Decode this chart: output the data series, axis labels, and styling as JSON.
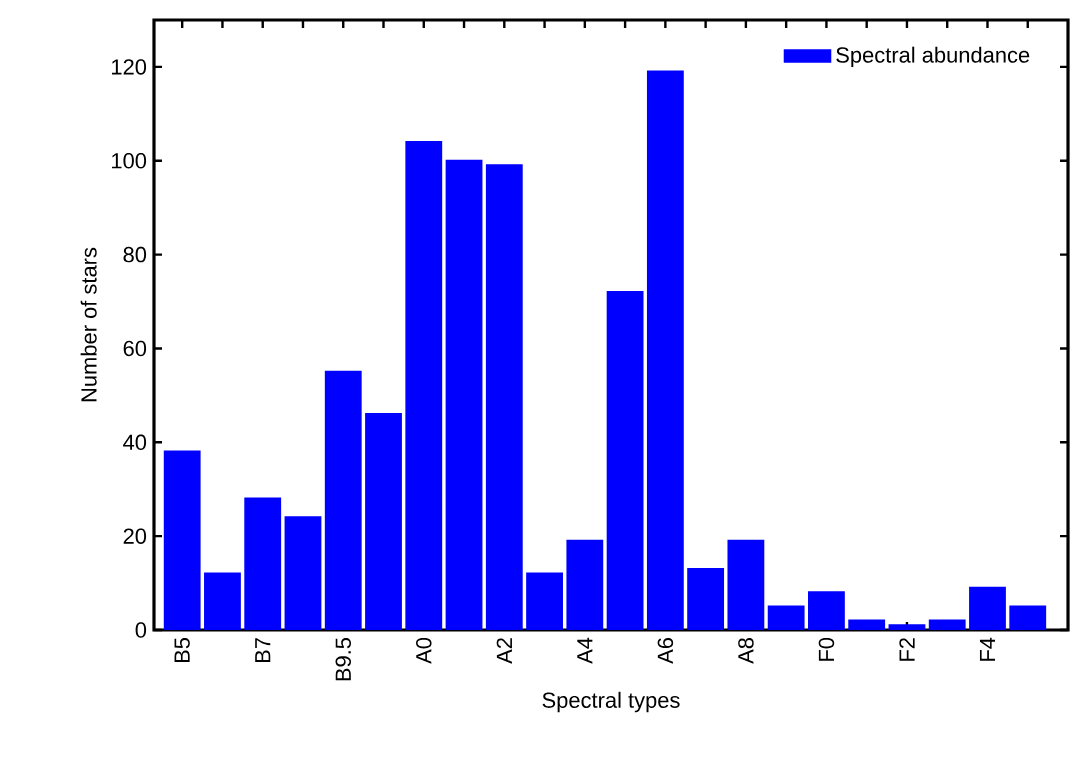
{
  "chart_data": {
    "type": "bar",
    "xlabel": "Spectral types",
    "ylabel": "Number of stars",
    "categories": [
      "B5",
      null,
      "B7",
      null,
      "B9.5",
      null,
      "A0",
      null,
      "A2",
      null,
      "A4",
      null,
      "A6",
      null,
      "A8",
      null,
      "F0",
      null,
      "F2",
      null,
      "F4",
      null
    ],
    "series": [
      {
        "name": "Spectral abundance",
        "color": "#0000ff",
        "values": [
          38,
          12,
          28,
          24,
          55,
          46,
          104,
          100,
          99,
          12,
          19,
          72,
          119,
          13,
          19,
          5,
          8,
          2,
          1,
          2,
          9,
          5
        ]
      }
    ],
    "ylim": [
      0,
      130
    ],
    "yticks": [
      0,
      20,
      40,
      60,
      80,
      100,
      120
    ],
    "legend": "top right"
  }
}
